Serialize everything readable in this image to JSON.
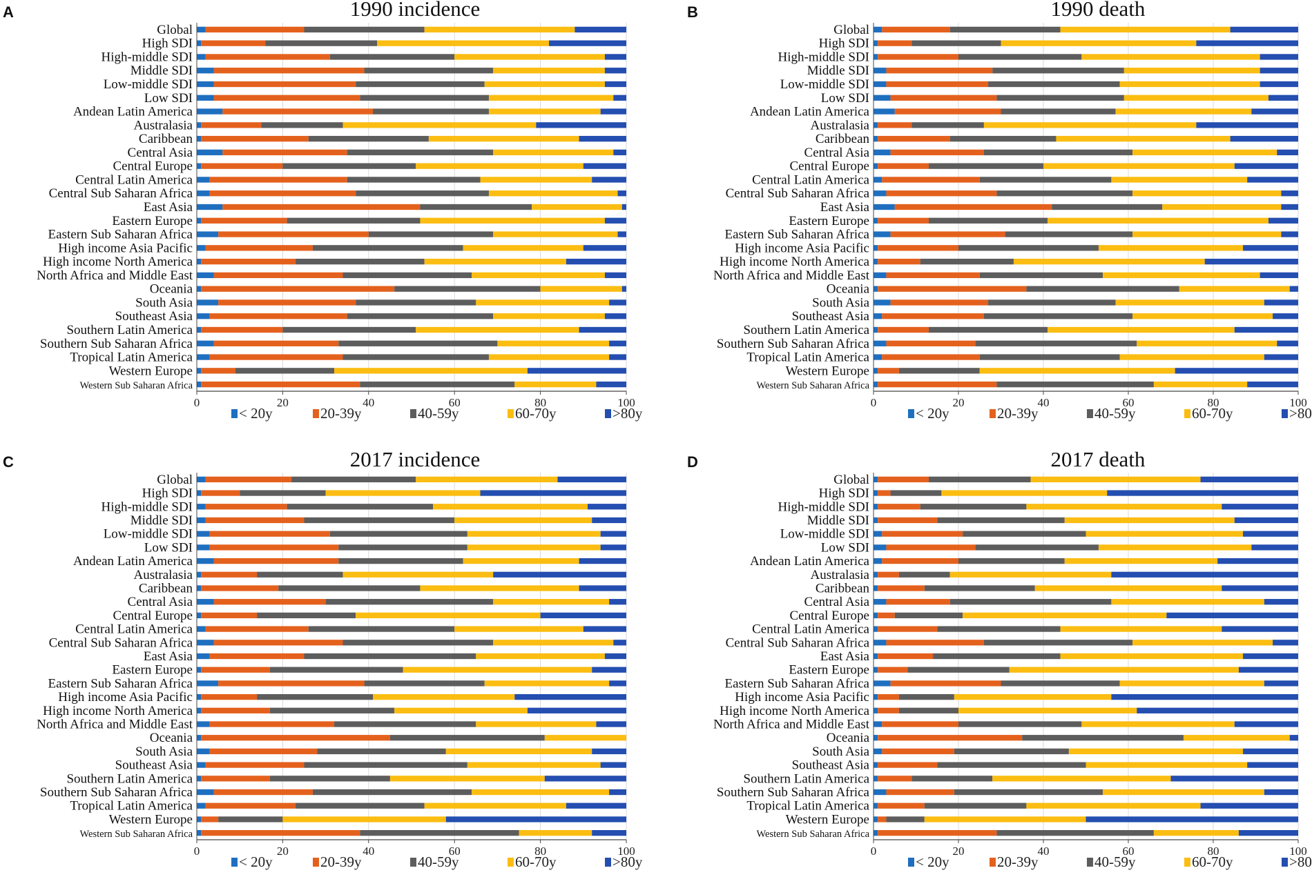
{
  "colors": {
    "lt20": "#1f6fc0",
    "y20_39": "#e4611d",
    "y40_59": "#5d5d5d",
    "y60_70": "#fbbd12",
    "gt80": "#244eb0",
    "gridline": "#d9d9d9",
    "axis": "#444444"
  },
  "legend": [
    "< 20y",
    "20-39y",
    "40-59y",
    "60-70y",
    ">80y"
  ],
  "chart_data": [
    {
      "panel": "A",
      "type": "bar",
      "orientation": "horizontal",
      "stacked": true,
      "title": "1990 incidence",
      "xlim": [
        0,
        100
      ],
      "xticks": [
        0,
        20,
        40,
        60,
        80,
        100
      ],
      "categories": [
        "Global",
        "High SDI",
        "High-middle SDI",
        "Middle SDI",
        "Low-middle SDI",
        "Low SDI",
        "Andean Latin America",
        "Australasia",
        "Caribbean",
        "Central Asia",
        "Central Europe",
        "Central Latin America",
        "Central Sub Saharan Africa",
        "East Asia",
        "Eastern Europe",
        "Eastern Sub Saharan Africa",
        "High income Asia Pacific",
        "High income North America",
        "North Africa and Middle East",
        "Oceania",
        "South Asia",
        "Southeast Asia",
        "Southern Latin America",
        "Southern Sub Saharan Africa",
        "Tropical Latin America",
        "Western Europe",
        "Western Sub Saharan Africa"
      ],
      "series": [
        {
          "name": "< 20y",
          "values": [
            2,
            1,
            2,
            4,
            4,
            4,
            6,
            1,
            1,
            6,
            1,
            3,
            3,
            6,
            1,
            5,
            2,
            1,
            4,
            1,
            5,
            3,
            1,
            4,
            3,
            1,
            1
          ]
        },
        {
          "name": "20-39y",
          "values": [
            23,
            15,
            29,
            35,
            33,
            34,
            35,
            14,
            25,
            29,
            19,
            32,
            34,
            46,
            20,
            35,
            25,
            22,
            30,
            45,
            32,
            32,
            19,
            29,
            31,
            8,
            37
          ]
        },
        {
          "name": "40-59y",
          "values": [
            28,
            26,
            29,
            30,
            30,
            30,
            27,
            19,
            28,
            34,
            31,
            31,
            31,
            26,
            31,
            29,
            35,
            30,
            30,
            34,
            28,
            34,
            31,
            37,
            34,
            23,
            36
          ]
        },
        {
          "name": "60-70y",
          "values": [
            35,
            40,
            35,
            26,
            28,
            29,
            26,
            45,
            35,
            28,
            39,
            26,
            30,
            21,
            43,
            29,
            28,
            33,
            31,
            19,
            31,
            26,
            38,
            26,
            28,
            45,
            19
          ]
        },
        {
          "name": ">80y",
          "values": [
            12,
            18,
            5,
            5,
            5,
            3,
            6,
            21,
            11,
            3,
            10,
            8,
            2,
            1,
            5,
            2,
            10,
            14,
            5,
            1,
            4,
            5,
            11,
            4,
            4,
            23,
            7
          ]
        }
      ]
    },
    {
      "panel": "B",
      "type": "bar",
      "orientation": "horizontal",
      "stacked": true,
      "title": "1990 death",
      "xlim": [
        0,
        100
      ],
      "xticks": [
        0,
        20,
        40,
        60,
        80,
        100
      ],
      "categories": [
        "Global",
        "High SDI",
        "High-middle SDI",
        "Middle SDI",
        "Low-middle SDI",
        "Low SDI",
        "Andean Latin America",
        "Australasia",
        "Caribbean",
        "Central Asia",
        "Central Europe",
        "Central Latin America",
        "Central Sub Saharan Africa",
        "East Asia",
        "Eastern Europe",
        "Eastern Sub Saharan Africa",
        "High income Asia Pacific",
        "High income North America",
        "North Africa and Middle East",
        "Oceania",
        "South Asia",
        "Southeast Asia",
        "Southern Latin America",
        "Southern Sub Saharan Africa",
        "Tropical Latin America",
        "Western Europe",
        "Western Sub Saharan Africa"
      ],
      "series": [
        {
          "name": "< 20y",
          "values": [
            2,
            1,
            1,
            3,
            3,
            4,
            5,
            1,
            1,
            4,
            1,
            2,
            3,
            5,
            1,
            4,
            1,
            1,
            3,
            1,
            4,
            2,
            1,
            3,
            2,
            1,
            1
          ]
        },
        {
          "name": "20-39y",
          "values": [
            16,
            8,
            19,
            25,
            24,
            25,
            25,
            8,
            17,
            22,
            12,
            23,
            26,
            37,
            12,
            27,
            19,
            10,
            22,
            35,
            23,
            24,
            12,
            21,
            23,
            5,
            28
          ]
        },
        {
          "name": "40-59y",
          "values": [
            26,
            21,
            29,
            31,
            31,
            30,
            27,
            17,
            25,
            35,
            27,
            31,
            32,
            26,
            28,
            30,
            33,
            22,
            29,
            36,
            30,
            35,
            28,
            38,
            33,
            19,
            37
          ]
        },
        {
          "name": "60-70y",
          "values": [
            40,
            46,
            42,
            32,
            33,
            34,
            32,
            50,
            41,
            34,
            45,
            32,
            35,
            28,
            52,
            35,
            34,
            45,
            37,
            26,
            35,
            33,
            44,
            33,
            34,
            46,
            22
          ]
        },
        {
          "name": ">80y",
          "values": [
            16,
            24,
            9,
            9,
            9,
            7,
            11,
            24,
            16,
            5,
            15,
            12,
            4,
            4,
            7,
            4,
            13,
            22,
            9,
            2,
            8,
            6,
            15,
            5,
            8,
            29,
            12
          ]
        }
      ]
    },
    {
      "panel": "C",
      "type": "bar",
      "orientation": "horizontal",
      "stacked": true,
      "title": "2017 incidence",
      "xlim": [
        0,
        100
      ],
      "xticks": [
        0,
        20,
        40,
        60,
        80,
        100
      ],
      "categories": [
        "Global",
        "High SDI",
        "High-middle SDI",
        "Middle SDI",
        "Low-middle SDI",
        "Low SDI",
        "Andean Latin America",
        "Australasia",
        "Caribbean",
        "Central Asia",
        "Central Europe",
        "Central Latin America",
        "Central Sub Saharan Africa",
        "East Asia",
        "Eastern Europe",
        "Eastern Sub Saharan Africa",
        "High income Asia Pacific",
        "High income North America",
        "North Africa and Middle East",
        "Oceania",
        "South Asia",
        "Southeast Asia",
        "Southern Latin America",
        "Southern Sub Saharan Africa",
        "Tropical Latin America",
        "Western Europe",
        "Western Sub Saharan Africa"
      ],
      "series": [
        {
          "name": "< 20y",
          "values": [
            2,
            1,
            2,
            2,
            3,
            3,
            4,
            1,
            1,
            4,
            1,
            2,
            4,
            3,
            1,
            5,
            1,
            1,
            3,
            1,
            3,
            2,
            1,
            4,
            2,
            1,
            1
          ]
        },
        {
          "name": "20-39y",
          "values": [
            20,
            9,
            19,
            23,
            28,
            30,
            29,
            13,
            18,
            26,
            13,
            24,
            30,
            22,
            16,
            34,
            13,
            16,
            29,
            44,
            25,
            23,
            16,
            23,
            21,
            4,
            37
          ]
        },
        {
          "name": "40-59y",
          "values": [
            29,
            20,
            34,
            35,
            32,
            30,
            29,
            20,
            33,
            39,
            23,
            34,
            35,
            40,
            31,
            28,
            27,
            29,
            33,
            36,
            30,
            38,
            28,
            37,
            30,
            15,
            37
          ]
        },
        {
          "name": "60-70y",
          "values": [
            33,
            36,
            36,
            32,
            31,
            31,
            27,
            35,
            37,
            27,
            43,
            30,
            28,
            30,
            44,
            29,
            33,
            31,
            28,
            19,
            34,
            31,
            36,
            32,
            33,
            38,
            17
          ]
        },
        {
          "name": ">80y",
          "values": [
            16,
            34,
            9,
            8,
            6,
            6,
            11,
            31,
            11,
            4,
            20,
            10,
            3,
            5,
            8,
            4,
            26,
            23,
            7,
            0,
            8,
            6,
            19,
            4,
            14,
            42,
            8
          ]
        }
      ]
    },
    {
      "panel": "D",
      "type": "bar",
      "orientation": "horizontal",
      "stacked": true,
      "title": "2017 death",
      "xlim": [
        0,
        100
      ],
      "xticks": [
        0,
        20,
        40,
        60,
        80,
        100
      ],
      "categories": [
        "Global",
        "High SDI",
        "High-middle SDI",
        "Middle SDI",
        "Low-middle SDI",
        "Low SDI",
        "Andean Latin America",
        "Australasia",
        "Caribbean",
        "Central Asia",
        "Central Europe",
        "Central Latin America",
        "Central Sub Saharan Africa",
        "East Asia",
        "Eastern Europe",
        "Eastern Sub Saharan Africa",
        "High income Asia Pacific",
        "High income North America",
        "North Africa and Middle East",
        "Oceania",
        "South Asia",
        "Southeast Asia",
        "Southern Latin America",
        "Southern Sub Saharan Africa",
        "Tropical Latin America",
        "Western Europe",
        "Western Sub Saharan Africa"
      ],
      "series": [
        {
          "name": "< 20y",
          "values": [
            1,
            1,
            1,
            1,
            2,
            3,
            2,
            1,
            1,
            3,
            1,
            1,
            3,
            1,
            1,
            4,
            1,
            1,
            2,
            1,
            2,
            1,
            1,
            3,
            1,
            1,
            1
          ]
        },
        {
          "name": "20-39y",
          "values": [
            12,
            3,
            10,
            14,
            19,
            21,
            18,
            5,
            11,
            15,
            4,
            14,
            23,
            13,
            7,
            26,
            5,
            5,
            18,
            34,
            17,
            14,
            8,
            16,
            11,
            2,
            28
          ]
        },
        {
          "name": "40-59y",
          "values": [
            24,
            12,
            25,
            30,
            29,
            29,
            25,
            12,
            26,
            38,
            16,
            29,
            35,
            30,
            24,
            28,
            13,
            14,
            29,
            38,
            27,
            35,
            19,
            35,
            24,
            9,
            37
          ]
        },
        {
          "name": "60-70y",
          "values": [
            40,
            39,
            46,
            40,
            37,
            36,
            36,
            38,
            44,
            36,
            48,
            38,
            33,
            43,
            54,
            34,
            37,
            42,
            36,
            25,
            41,
            38,
            42,
            38,
            41,
            38,
            20
          ]
        },
        {
          "name": ">80y",
          "values": [
            23,
            45,
            18,
            15,
            13,
            11,
            19,
            44,
            18,
            8,
            31,
            18,
            6,
            13,
            14,
            8,
            44,
            38,
            15,
            2,
            13,
            12,
            30,
            8,
            23,
            50,
            14
          ]
        }
      ]
    }
  ]
}
